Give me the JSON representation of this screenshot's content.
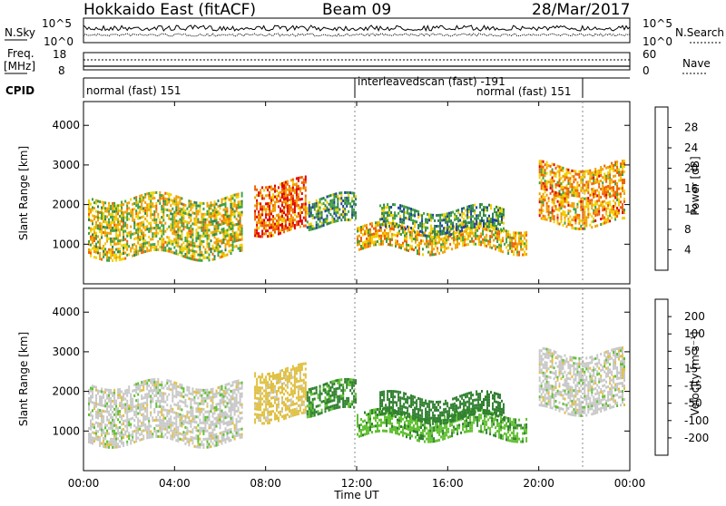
{
  "header": {
    "station": "Hokkaido East (fitACF)",
    "beam": "Beam 09",
    "date": "28/Mar/2017"
  },
  "noise_panel": {
    "left_label": "N.Sky",
    "right_label": "N.Search",
    "left_ticks": [
      "10^5",
      "10^0"
    ],
    "right_ticks": [
      "10^5",
      "10^0"
    ]
  },
  "freq_panel": {
    "left_label": "Freq.",
    "left_unit": "[MHz]",
    "left_ticks": [
      "18",
      "8"
    ],
    "right_label": "Nave",
    "right_ticks": [
      "60",
      "0"
    ]
  },
  "cpid_panel": {
    "label": "CPID",
    "modes": [
      {
        "name": "normal (fast) 151"
      },
      {
        "name": "interleavedscan (fast) -191"
      },
      {
        "name": "normal (fast) 151"
      }
    ]
  },
  "colors": {
    "power": [
      "#0000ff",
      "#1f3f9f",
      "#2f7f4f",
      "#3fa03f",
      "#f0d000",
      "#f0a000",
      "#f06000",
      "#e00000"
    ],
    "velocity": [
      "#ff0000",
      "#ff5000",
      "#ff9000",
      "#e0c040",
      "#c8c8c8",
      "#60c030",
      "#308030",
      "#2040a0",
      "#0000c0"
    ]
  },
  "chart_data": [
    {
      "type": "heatmap",
      "panel": "power",
      "ylabel": "Slant Range [km]",
      "yticks": [
        1000,
        2000,
        3000,
        4000
      ],
      "ylim": [
        0,
        4600
      ],
      "xlim": [
        0,
        24
      ],
      "xticks": [
        "00:00",
        "04:00",
        "08:00",
        "12:00",
        "16:00",
        "20:00",
        "00:00"
      ],
      "colorbar": {
        "label": "Power [dB]",
        "ticks": [
          4,
          8,
          12,
          16,
          20,
          24,
          28
        ],
        "range": [
          0,
          32
        ]
      },
      "echo_regions": [
        {
          "t0": 0.2,
          "t1": 7.0,
          "r0": 700,
          "r1": 2200,
          "value": 18
        },
        {
          "t0": 7.5,
          "t1": 9.8,
          "r0": 1300,
          "r1": 2600,
          "value": 26
        },
        {
          "t0": 9.8,
          "t1": 12.0,
          "r0": 1500,
          "r1": 2200,
          "value": 12
        },
        {
          "t0": 12.0,
          "t1": 19.5,
          "r0": 850,
          "r1": 1450,
          "value": 20
        },
        {
          "t0": 13.0,
          "t1": 18.5,
          "r0": 1300,
          "r1": 1900,
          "value": 12
        },
        {
          "t0": 20.0,
          "t1": 23.8,
          "r0": 1500,
          "r1": 3000,
          "value": 22
        }
      ]
    },
    {
      "type": "heatmap",
      "panel": "velocity",
      "ylabel": "Slant Range [km]",
      "yticks": [
        1000,
        2000,
        3000,
        4000
      ],
      "ylim": [
        0,
        4600
      ],
      "xlim": [
        0,
        24
      ],
      "xlabel": "Time UT",
      "xticks": [
        "00:00",
        "04:00",
        "08:00",
        "12:00",
        "16:00",
        "20:00",
        "00:00"
      ],
      "colorbar": {
        "label": "Velocity [m s⁻¹]",
        "ticks": [
          "200",
          "100",
          "50",
          "15",
          "-15",
          "-50",
          "-100",
          "-200"
        ]
      },
      "echo_regions": [
        {
          "t0": 0.2,
          "t1": 7.0,
          "r0": 700,
          "r1": 2200,
          "value": 0
        },
        {
          "t0": 7.5,
          "t1": 9.8,
          "r0": 1300,
          "r1": 2600,
          "value": -30
        },
        {
          "t0": 9.8,
          "t1": 12.0,
          "r0": 1500,
          "r1": 2200,
          "value": 60
        },
        {
          "t0": 12.0,
          "t1": 19.5,
          "r0": 850,
          "r1": 1450,
          "value": 40
        },
        {
          "t0": 13.0,
          "t1": 18.5,
          "r0": 1300,
          "r1": 1900,
          "value": 80
        },
        {
          "t0": 20.0,
          "t1": 23.8,
          "r0": 1500,
          "r1": 3000,
          "value": 0
        }
      ]
    }
  ]
}
